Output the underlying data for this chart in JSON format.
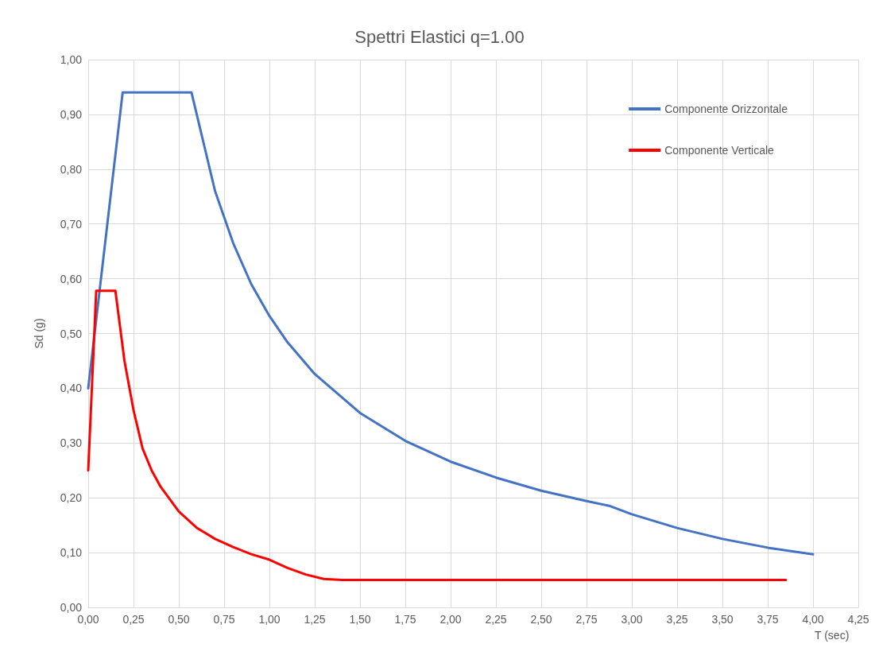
{
  "chart_data": {
    "type": "line",
    "title": "Spettri Elastici q=1.00",
    "xlabel": "T (sec)",
    "ylabel": "Sd (g)",
    "series": [
      {
        "name": "Componente Orizzontale",
        "color": "#4472c4",
        "x": [
          0,
          0.19,
          0.57,
          0.7,
          0.8,
          0.9,
          1.0,
          1.1,
          1.25,
          1.5,
          1.75,
          2.0,
          2.25,
          2.5,
          2.75,
          2.88,
          3.0,
          3.25,
          3.5,
          3.75,
          4.0
        ],
        "values": [
          0.4,
          0.94,
          0.94,
          0.76,
          0.665,
          0.59,
          0.532,
          0.484,
          0.426,
          0.355,
          0.304,
          0.266,
          0.237,
          0.213,
          0.194,
          0.185,
          0.17,
          0.145,
          0.125,
          0.109,
          0.097
        ]
      },
      {
        "name": "Componente Verticale",
        "color": "#ff0000",
        "x": [
          0,
          0.044,
          0.15,
          0.2,
          0.25,
          0.3,
          0.35,
          0.4,
          0.5,
          0.6,
          0.7,
          0.8,
          0.9,
          1.0,
          1.1,
          1.2,
          1.3,
          1.4,
          3.85
        ],
        "values": [
          0.25,
          0.578,
          0.578,
          0.45,
          0.36,
          0.29,
          0.25,
          0.22,
          0.175,
          0.145,
          0.125,
          0.11,
          0.097,
          0.087,
          0.072,
          0.06,
          0.052,
          0.05,
          0.05
        ]
      }
    ],
    "xlim": [
      0,
      4.25
    ],
    "xticks": [
      {
        "value": 0,
        "label": "0,00"
      },
      {
        "value": 0.25,
        "label": "0,25"
      },
      {
        "value": 0.5,
        "label": "0,50"
      },
      {
        "value": 0.75,
        "label": "0,75"
      },
      {
        "value": 1,
        "label": "1,00"
      },
      {
        "value": 1.25,
        "label": "1,25"
      },
      {
        "value": 1.5,
        "label": "1,50"
      },
      {
        "value": 1.75,
        "label": "1,75"
      },
      {
        "value": 2,
        "label": "2,00"
      },
      {
        "value": 2.25,
        "label": "2,25"
      },
      {
        "value": 2.5,
        "label": "2,50"
      },
      {
        "value": 2.75,
        "label": "2,75"
      },
      {
        "value": 3,
        "label": "3,00"
      },
      {
        "value": 3.25,
        "label": "3,25"
      },
      {
        "value": 3.5,
        "label": "3,50"
      },
      {
        "value": 3.75,
        "label": "3,75"
      },
      {
        "value": 4,
        "label": "4,00"
      },
      {
        "value": 4.25,
        "label": "4,25"
      }
    ],
    "ylim": [
      0,
      1
    ],
    "yticks": [
      {
        "value": 0,
        "label": "0,00"
      },
      {
        "value": 0.1,
        "label": "0,10"
      },
      {
        "value": 0.2,
        "label": "0,20"
      },
      {
        "value": 0.3,
        "label": "0,30"
      },
      {
        "value": 0.4,
        "label": "0,40"
      },
      {
        "value": 0.5,
        "label": "0,50"
      },
      {
        "value": 0.6,
        "label": "0,60"
      },
      {
        "value": 0.7,
        "label": "0,70"
      },
      {
        "value": 0.8,
        "label": "0,80"
      },
      {
        "value": 0.9,
        "label": "0,90"
      },
      {
        "value": 1,
        "label": "1,00"
      }
    ],
    "grid": true,
    "legend": "top right",
    "marker": "none",
    "line_style": "solid"
  }
}
